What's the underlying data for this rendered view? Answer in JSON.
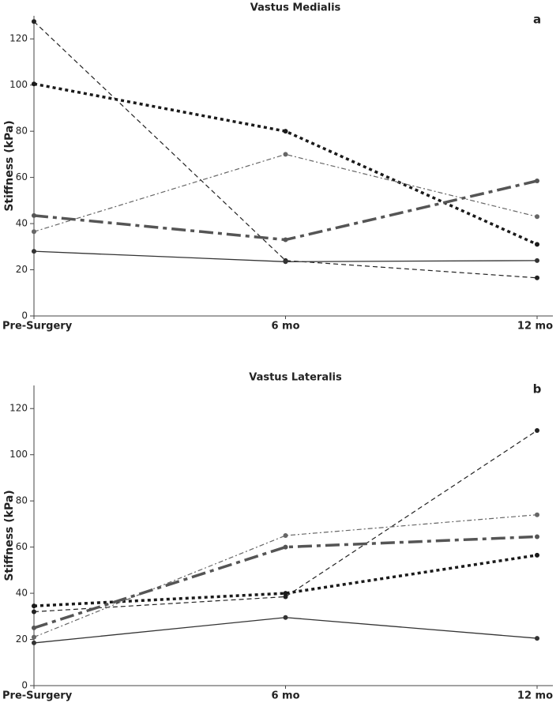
{
  "chart_data": [
    {
      "type": "line",
      "title": "Vastus Medialis",
      "annotation": "a",
      "ylabel": "Stiffness (kPa)",
      "categories": [
        "Pre-Surgery",
        "6 mo",
        "12 mo"
      ],
      "ylim": [
        0,
        130
      ],
      "yticks": [
        0,
        20,
        40,
        60,
        80,
        100,
        120
      ],
      "series": [
        {
          "color": "#222222",
          "dash": "dashed",
          "width": 1.2,
          "values": [
            127.5,
            24,
            16.5
          ]
        },
        {
          "color": "#1a1a1a",
          "dash": "dotted",
          "width": 3.5,
          "values": [
            100.5,
            80,
            31
          ]
        },
        {
          "color": "#666666",
          "dash": "dashdot",
          "width": 1.2,
          "values": [
            36.5,
            70,
            43
          ]
        },
        {
          "color": "#555555",
          "dash": "longdashdot",
          "width": 3.5,
          "values": [
            43.5,
            33,
            58.5
          ]
        },
        {
          "color": "#333333",
          "dash": "solid",
          "width": 1.3,
          "values": [
            28,
            23.5,
            24
          ]
        }
      ]
    },
    {
      "type": "line",
      "title": "Vastus Lateralis",
      "annotation": "b",
      "ylabel": "Stiffness (kPa)",
      "categories": [
        "Pre-Surgery",
        "6 mo",
        "12 mo"
      ],
      "ylim": [
        0,
        130
      ],
      "yticks": [
        0,
        20,
        40,
        60,
        80,
        100,
        120
      ],
      "series": [
        {
          "color": "#333333",
          "dash": "solid",
          "width": 1.3,
          "values": [
            18.5,
            29.5,
            20.5
          ]
        },
        {
          "color": "#222222",
          "dash": "dashed",
          "width": 1.2,
          "values": [
            32,
            38.5,
            110.5
          ]
        },
        {
          "color": "#1a1a1a",
          "dash": "dotted",
          "width": 3.5,
          "values": [
            34.5,
            40,
            56.5
          ]
        },
        {
          "color": "#666666",
          "dash": "dashdot",
          "width": 1.2,
          "values": [
            21,
            65,
            74
          ]
        },
        {
          "color": "#555555",
          "dash": "longdashdot",
          "width": 3.5,
          "values": [
            25,
            60,
            64.5
          ]
        }
      ]
    }
  ]
}
